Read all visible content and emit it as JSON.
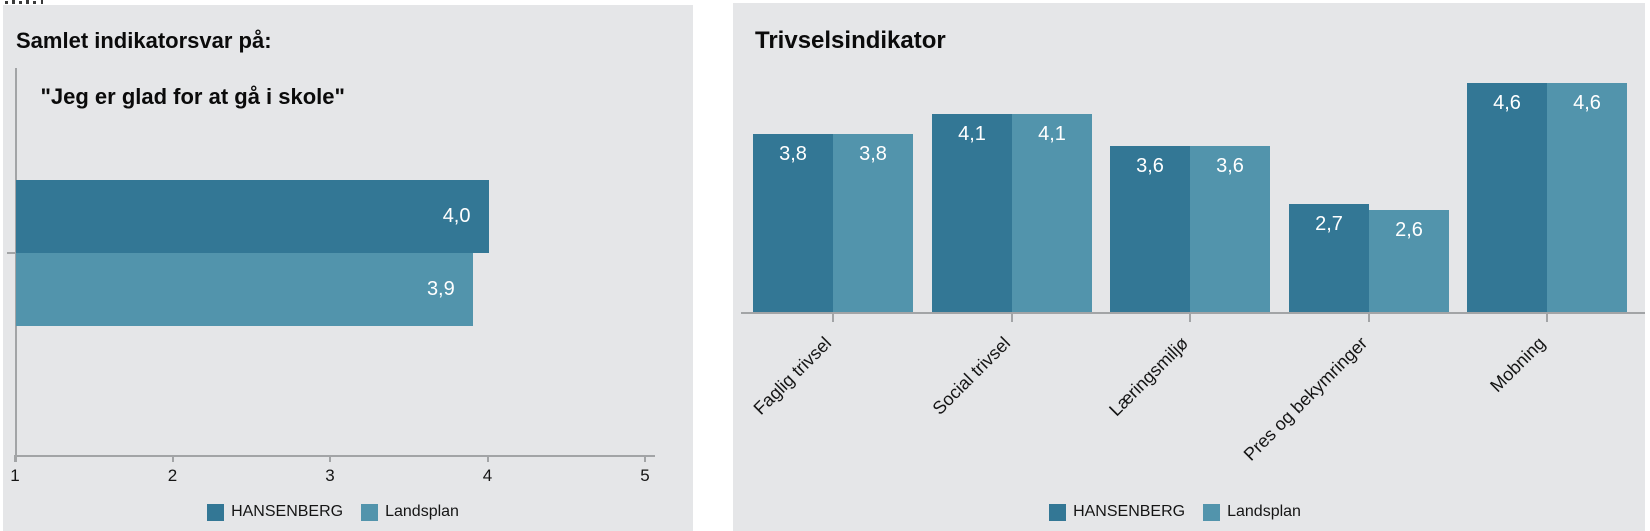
{
  "colors": {
    "hansenberg": "#337795",
    "landsplan": "#5294ac",
    "panel_background": "#e5e6e8",
    "axis": "#a2a4a6",
    "value_label": "#ffffff",
    "text": "#151515"
  },
  "legend": {
    "items": [
      {
        "label": "HANSENBERG",
        "color_key": "hansenberg"
      },
      {
        "label": "Landsplan",
        "color_key": "landsplan"
      }
    ]
  },
  "chart_data": [
    {
      "type": "bar",
      "orientation": "horizontal",
      "title_lines": [
        "Samlet indikatorsvar på:",
        "\"Jeg er glad for at gå i skole\""
      ],
      "series": [
        {
          "name": "HANSENBERG",
          "values": [
            4.0
          ],
          "labels": [
            "4,0"
          ]
        },
        {
          "name": "Landsplan",
          "values": [
            3.9
          ],
          "labels": [
            "3,9"
          ]
        }
      ],
      "xlim": [
        1,
        5
      ],
      "x_ticks": [
        "1",
        "2",
        "3",
        "4",
        "5"
      ],
      "grid": false,
      "legend_position": "bottom"
    },
    {
      "type": "bar",
      "orientation": "vertical",
      "title": "Trivselsindikator",
      "categories": [
        "Faglig trivsel",
        "Social trivsel",
        "Læringsmiljø",
        "Pres og bekymringer",
        "Mobning"
      ],
      "series": [
        {
          "name": "HANSENBERG",
          "values": [
            3.8,
            4.1,
            3.6,
            2.7,
            4.6
          ],
          "labels": [
            "3,8",
            "4,1",
            "3,6",
            "2,7",
            "4,6"
          ]
        },
        {
          "name": "Landsplan",
          "values": [
            3.8,
            4.1,
            3.6,
            2.6,
            4.6
          ],
          "labels": [
            "3,8",
            "4,1",
            "3,6",
            "2,6",
            "4,6"
          ]
        }
      ],
      "ylim": [
        1,
        5
      ],
      "grid": false,
      "legend_position": "bottom"
    }
  ]
}
